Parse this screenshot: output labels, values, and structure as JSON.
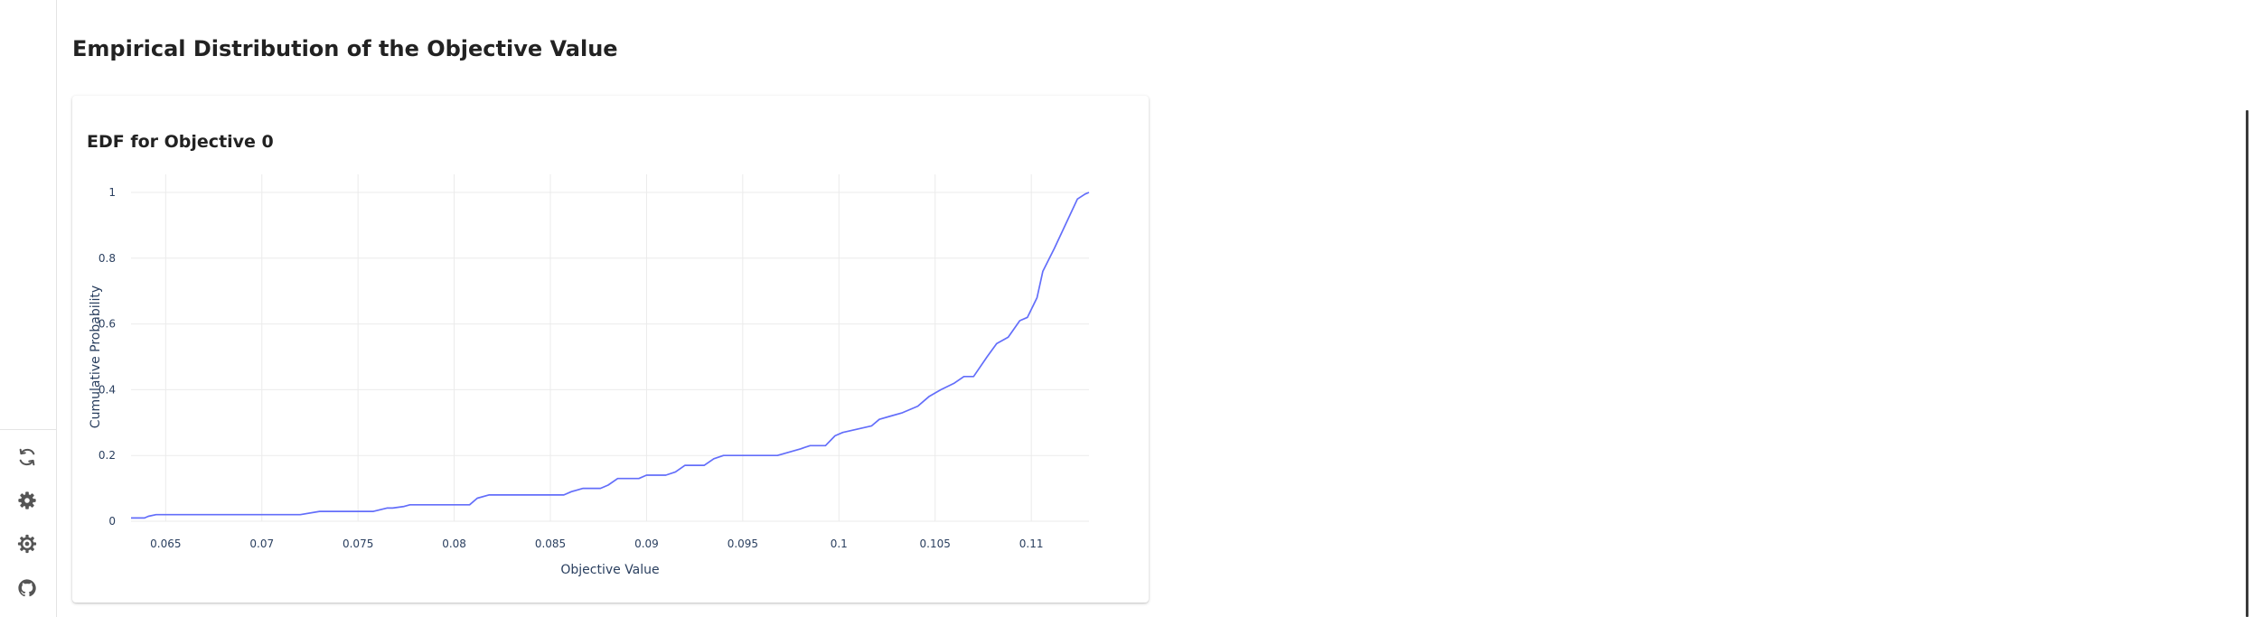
{
  "page": {
    "title": "Empirical Distribution of the Objective Value"
  },
  "sidebar": {
    "buttons": [
      {
        "name": "reload-icon",
        "label": "Reload"
      },
      {
        "name": "settings-icon",
        "label": "Settings"
      },
      {
        "name": "preferences-icon",
        "label": "Preferences"
      },
      {
        "name": "github-icon",
        "label": "GitHub"
      }
    ]
  },
  "card": {
    "title": "EDF for Objective 0"
  },
  "colors": {
    "line": "#636efa",
    "grid": "#ebebeb",
    "axis_text": "#2a3f5f"
  },
  "chart_data": {
    "type": "line",
    "title": "EDF for Objective 0",
    "xlabel": "Objective Value",
    "ylabel": "Cumulative Probability",
    "xlim": [
      0.0632,
      0.113
    ],
    "ylim": [
      0,
      1.0
    ],
    "grid": true,
    "x_ticks": [
      0.065,
      0.07,
      0.075,
      0.08,
      0.085,
      0.09,
      0.095,
      0.1,
      0.105,
      0.11
    ],
    "x_tick_labels": [
      "0.065",
      "0.07",
      "0.075",
      "0.08",
      "0.085",
      "0.09",
      "0.095",
      "0.1",
      "0.105",
      "0.11"
    ],
    "y_ticks": [
      0,
      0.2,
      0.4,
      0.6,
      0.8,
      1
    ],
    "y_tick_labels": [
      "0",
      "0.2",
      "0.4",
      "0.6",
      "0.8",
      "1"
    ],
    "series": [
      {
        "x": [
          0.0632,
          0.0639,
          0.0641,
          0.0645,
          0.072,
          0.073,
          0.0758,
          0.0765,
          0.0768,
          0.0774,
          0.0777,
          0.0808,
          0.0812,
          0.0818,
          0.0857,
          0.0861,
          0.0867,
          0.0876,
          0.088,
          0.0885,
          0.0896,
          0.09,
          0.091,
          0.0915,
          0.092,
          0.093,
          0.0935,
          0.094,
          0.0968,
          0.098,
          0.0985,
          0.0993,
          0.0998,
          0.1002,
          0.1017,
          0.1021,
          0.1027,
          0.1033,
          0.1041,
          0.1047,
          0.1053,
          0.106,
          0.1065,
          0.107,
          0.1077,
          0.1082,
          0.1088,
          0.1094,
          0.1098,
          0.1103,
          0.1106,
          0.1112,
          0.112,
          0.1124,
          0.1128,
          0.113
        ],
        "y": [
          0.01,
          0.01,
          0.015,
          0.02,
          0.02,
          0.03,
          0.03,
          0.04,
          0.04,
          0.045,
          0.05,
          0.05,
          0.07,
          0.08,
          0.08,
          0.09,
          0.1,
          0.1,
          0.11,
          0.13,
          0.13,
          0.14,
          0.14,
          0.15,
          0.17,
          0.17,
          0.19,
          0.2,
          0.2,
          0.22,
          0.23,
          0.23,
          0.26,
          0.27,
          0.29,
          0.31,
          0.32,
          0.33,
          0.35,
          0.38,
          0.4,
          0.42,
          0.44,
          0.44,
          0.5,
          0.54,
          0.56,
          0.61,
          0.62,
          0.68,
          0.76,
          0.83,
          0.93,
          0.98,
          0.995,
          1.0
        ]
      }
    ]
  }
}
